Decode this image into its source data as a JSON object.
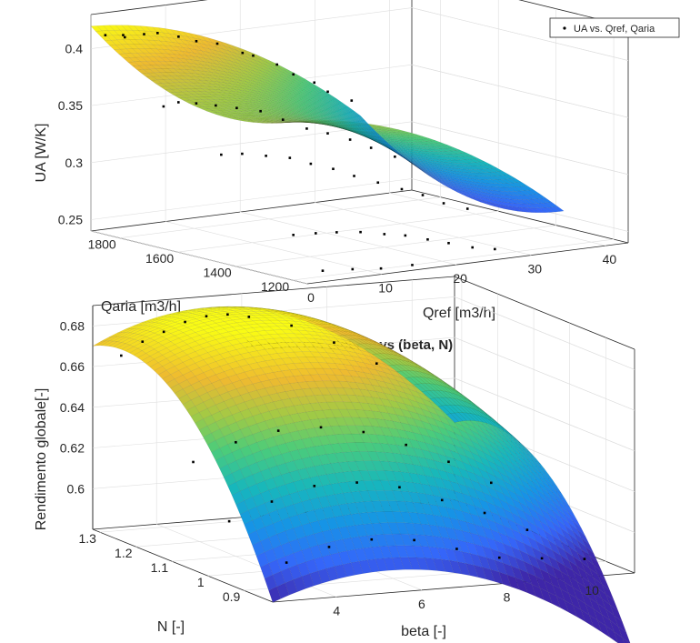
{
  "chart_data": [
    {
      "type": "surface3d",
      "title": "",
      "xlabel": "Qref [m3/h]",
      "ylabel": "Qaria [m3/h]",
      "zlabel": "UA [W/K]",
      "x_ticks": [
        "0",
        "10",
        "20",
        "30",
        "40"
      ],
      "y_ticks": [
        "1200",
        "1400",
        "1600",
        "1800"
      ],
      "z_ticks": [
        "0.25",
        "0.3",
        "0.35",
        "0.4"
      ],
      "xlim": [
        0,
        43
      ],
      "ylim": [
        1150,
        1900
      ],
      "zlim": [
        0.24,
        0.43
      ],
      "legend": {
        "entries": [
          "UA vs. Qref, Qaria"
        ],
        "position": "top-right"
      },
      "grid": true,
      "colormap": "parula",
      "surface_model": "UA ≈ 0.41 − 0.00012·(Qref+3)^2 − 0.00019·(1850−Qaria) + 0.00000028·(1850−Qaria)^2, approx. fit",
      "points": [
        {
          "x": 0,
          "y": 1850,
          "z": 0.415
        },
        {
          "x": 2,
          "y": 1840,
          "z": 0.414
        },
        {
          "x": 3,
          "y": 1860,
          "z": 0.41
        },
        {
          "x": 5,
          "y": 1845,
          "z": 0.412
        },
        {
          "x": 7,
          "y": 1850,
          "z": 0.411
        },
        {
          "x": 10,
          "y": 1855,
          "z": 0.405
        },
        {
          "x": 12,
          "y": 1845,
          "z": 0.4
        },
        {
          "x": 15,
          "y": 1850,
          "z": 0.395
        },
        {
          "x": 18,
          "y": 1840,
          "z": 0.385
        },
        {
          "x": 20,
          "y": 1855,
          "z": 0.38
        },
        {
          "x": 23,
          "y": 1850,
          "z": 0.37
        },
        {
          "x": 25,
          "y": 1845,
          "z": 0.36
        },
        {
          "x": 28,
          "y": 1850,
          "z": 0.35
        },
        {
          "x": 30,
          "y": 1855,
          "z": 0.34
        },
        {
          "x": 33,
          "y": 1850,
          "z": 0.33
        },
        {
          "x": 2,
          "y": 1700,
          "z": 0.36
        },
        {
          "x": 4,
          "y": 1700,
          "z": 0.362
        },
        {
          "x": 6,
          "y": 1690,
          "z": 0.36
        },
        {
          "x": 9,
          "y": 1700,
          "z": 0.355
        },
        {
          "x": 12,
          "y": 1705,
          "z": 0.35
        },
        {
          "x": 15,
          "y": 1700,
          "z": 0.345
        },
        {
          "x": 18,
          "y": 1700,
          "z": 0.335
        },
        {
          "x": 21,
          "y": 1695,
          "z": 0.325
        },
        {
          "x": 24,
          "y": 1700,
          "z": 0.318
        },
        {
          "x": 27,
          "y": 1700,
          "z": 0.31
        },
        {
          "x": 30,
          "y": 1705,
          "z": 0.3
        },
        {
          "x": 33,
          "y": 1700,
          "z": 0.29
        },
        {
          "x": 2,
          "y": 1500,
          "z": 0.33
        },
        {
          "x": 5,
          "y": 1505,
          "z": 0.328
        },
        {
          "x": 8,
          "y": 1500,
          "z": 0.324
        },
        {
          "x": 11,
          "y": 1495,
          "z": 0.32
        },
        {
          "x": 14,
          "y": 1500,
          "z": 0.312
        },
        {
          "x": 17,
          "y": 1500,
          "z": 0.305
        },
        {
          "x": 20,
          "y": 1505,
          "z": 0.296
        },
        {
          "x": 23,
          "y": 1500,
          "z": 0.288
        },
        {
          "x": 26,
          "y": 1495,
          "z": 0.28
        },
        {
          "x": 29,
          "y": 1500,
          "z": 0.272
        },
        {
          "x": 32,
          "y": 1505,
          "z": 0.262
        },
        {
          "x": 35,
          "y": 1500,
          "z": 0.255
        },
        {
          "x": 2,
          "y": 1250,
          "z": 0.275
        },
        {
          "x": 5,
          "y": 1250,
          "z": 0.274
        },
        {
          "x": 8,
          "y": 1255,
          "z": 0.272
        },
        {
          "x": 11,
          "y": 1250,
          "z": 0.27
        },
        {
          "x": 14,
          "y": 1245,
          "z": 0.266
        },
        {
          "x": 17,
          "y": 1250,
          "z": 0.262
        },
        {
          "x": 20,
          "y": 1250,
          "z": 0.256
        },
        {
          "x": 23,
          "y": 1255,
          "z": 0.25
        },
        {
          "x": 26,
          "y": 1250,
          "z": 0.244
        },
        {
          "x": 29,
          "y": 1250,
          "z": 0.24
        },
        {
          "x": 4,
          "y": 1200,
          "z": 0.245
        },
        {
          "x": 8,
          "y": 1200,
          "z": 0.243
        },
        {
          "x": 12,
          "y": 1205,
          "z": 0.24
        },
        {
          "x": 16,
          "y": 1200,
          "z": 0.24
        }
      ]
    },
    {
      "type": "surface3d",
      "title": "Rendimento globale vs (beta, N)",
      "xlabel": "beta [-]",
      "ylabel": "N [-]",
      "zlabel": "Rendimento globale[-]",
      "x_ticks": [
        "4",
        "6",
        "8",
        "10"
      ],
      "y_ticks": [
        "0.9",
        "1",
        "1.1",
        "1.2",
        "1.3"
      ],
      "z_ticks": [
        "0.6",
        "0.62",
        "0.64",
        "0.66",
        "0.68"
      ],
      "xlim": [
        2.5,
        11
      ],
      "ylim": [
        0.82,
        1.32
      ],
      "zlim": [
        0.58,
        0.69
      ],
      "grid": true,
      "colormap": "parula",
      "surface_model": "eta ≈ 0.688 − 0.0022·(beta−5.3)^2 − 0.38·(N−1.22)^2 + 0.0008·(beta−5.3)·(1.22−N)·10, approx. fit",
      "points": [
        {
          "x": 3,
          "y": 1.3,
          "z": 0.666
        },
        {
          "x": 3.5,
          "y": 1.3,
          "z": 0.672
        },
        {
          "x": 4,
          "y": 1.3,
          "z": 0.676
        },
        {
          "x": 4.5,
          "y": 1.3,
          "z": 0.68
        },
        {
          "x": 5,
          "y": 1.3,
          "z": 0.682
        },
        {
          "x": 5.5,
          "y": 1.3,
          "z": 0.682
        },
        {
          "x": 6,
          "y": 1.3,
          "z": 0.68
        },
        {
          "x": 7,
          "y": 1.3,
          "z": 0.674
        },
        {
          "x": 8,
          "y": 1.3,
          "z": 0.664
        },
        {
          "x": 9,
          "y": 1.3,
          "z": 0.652
        },
        {
          "x": 3,
          "y": 1.1,
          "z": 0.628
        },
        {
          "x": 4,
          "y": 1.1,
          "z": 0.636
        },
        {
          "x": 5,
          "y": 1.1,
          "z": 0.64
        },
        {
          "x": 6,
          "y": 1.1,
          "z": 0.64
        },
        {
          "x": 7,
          "y": 1.1,
          "z": 0.636
        },
        {
          "x": 8,
          "y": 1.1,
          "z": 0.628
        },
        {
          "x": 9,
          "y": 1.1,
          "z": 0.618
        },
        {
          "x": 10,
          "y": 1.1,
          "z": 0.606
        },
        {
          "x": 3,
          "y": 1.0,
          "z": 0.606
        },
        {
          "x": 4,
          "y": 1.0,
          "z": 0.614
        },
        {
          "x": 5,
          "y": 1.0,
          "z": 0.62
        },
        {
          "x": 6,
          "y": 1.0,
          "z": 0.62
        },
        {
          "x": 7,
          "y": 1.0,
          "z": 0.616
        },
        {
          "x": 8,
          "y": 1.0,
          "z": 0.608
        },
        {
          "x": 9,
          "y": 1.0,
          "z": 0.6
        },
        {
          "x": 10,
          "y": 1.0,
          "z": 0.59
        },
        {
          "x": 3.5,
          "y": 0.9,
          "z": 0.592
        },
        {
          "x": 4.5,
          "y": 0.9,
          "z": 0.598
        },
        {
          "x": 5.5,
          "y": 0.9,
          "z": 0.6
        },
        {
          "x": 6.5,
          "y": 0.9,
          "z": 0.598
        },
        {
          "x": 7.5,
          "y": 0.9,
          "z": 0.592
        },
        {
          "x": 8.5,
          "y": 0.9,
          "z": 0.586
        },
        {
          "x": 9.5,
          "y": 0.9,
          "z": 0.584
        },
        {
          "x": 10.5,
          "y": 0.9,
          "z": 0.582
        }
      ]
    }
  ]
}
